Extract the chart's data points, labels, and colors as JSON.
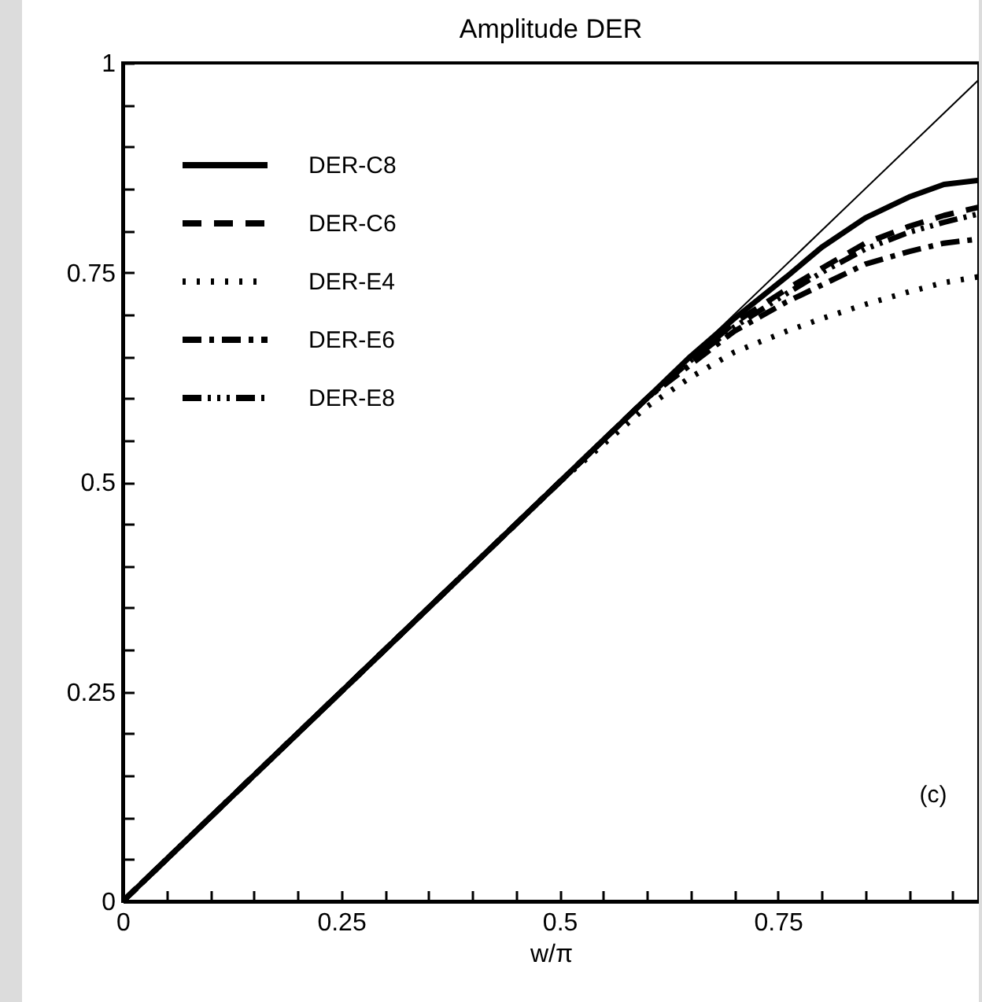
{
  "chart_data": {
    "type": "line",
    "title": "Amplitude DER",
    "xlabel": "w/π",
    "annotations": [
      "(c)"
    ],
    "x": [
      0,
      0.5,
      0.6,
      0.65,
      0.7,
      0.76,
      0.8,
      0.85,
      0.9,
      0.94,
      0.98
    ],
    "series": [
      {
        "color": "#000000",
        "line_style": "solid",
        "x": [
          0,
          0.98
        ],
        "values": [
          0,
          0.98
        ]
      },
      {
        "name": "DER-C8",
        "color": "#000000",
        "line_style": "solid",
        "values": [
          0,
          0.5,
          0.6,
          0.65,
          0.695,
          0.745,
          0.78,
          0.815,
          0.84,
          0.855,
          0.86
        ]
      },
      {
        "name": "DER-C6",
        "color": "#000000",
        "line_style": "dashed",
        "values": [
          0,
          0.5,
          0.6,
          0.645,
          0.69,
          0.73,
          0.755,
          0.785,
          0.805,
          0.818,
          0.828
        ]
      },
      {
        "name": "DER-E4",
        "color": "#000000",
        "line_style": "dotted",
        "values": [
          0,
          0.5,
          0.59,
          0.625,
          0.655,
          0.68,
          0.695,
          0.712,
          0.727,
          0.738,
          0.745
        ]
      },
      {
        "name": "DER-E6",
        "color": "#000000",
        "line_style": "dashdot",
        "values": [
          0,
          0.5,
          0.6,
          0.64,
          0.68,
          0.715,
          0.735,
          0.76,
          0.775,
          0.785,
          0.79
        ]
      },
      {
        "name": "DER-E8",
        "color": "#000000",
        "line_style": "dashdotdot",
        "values": [
          0,
          0.5,
          0.6,
          0.645,
          0.685,
          0.725,
          0.75,
          0.778,
          0.798,
          0.81,
          0.82
        ]
      }
    ],
    "xlim": [
      0,
      0.98
    ],
    "ylim": [
      0,
      1
    ],
    "xticks": [
      0,
      {
        "value": 0.05,
        "label": null
      },
      {
        "value": 0.1,
        "label": null
      },
      {
        "value": 0.15,
        "label": null
      },
      {
        "value": 0.2,
        "label": null
      },
      0.25,
      {
        "value": 0.3,
        "label": null
      },
      {
        "value": 0.35,
        "label": null
      },
      {
        "value": 0.4,
        "label": null
      },
      {
        "value": 0.45,
        "label": null
      },
      0.5,
      {
        "value": 0.55,
        "label": null
      },
      {
        "value": 0.6,
        "label": null
      },
      {
        "value": 0.65,
        "label": null
      },
      {
        "value": 0.7,
        "label": null
      },
      0.75,
      {
        "value": 0.8,
        "label": null
      },
      {
        "value": 0.85,
        "label": null
      },
      {
        "value": 0.9,
        "label": null
      },
      {
        "value": 0.95,
        "label": null
      }
    ],
    "yticks": [
      0,
      {
        "value": 0.05,
        "label": null
      },
      {
        "value": 0.1,
        "label": null
      },
      {
        "value": 0.15,
        "label": null
      },
      {
        "value": 0.2,
        "label": null
      },
      0.25,
      {
        "value": 0.3,
        "label": null
      },
      {
        "value": 0.35,
        "label": null
      },
      {
        "value": 0.4,
        "label": null
      },
      {
        "value": 0.45,
        "label": null
      },
      0.5,
      {
        "value": 0.55,
        "label": null
      },
      {
        "value": 0.6,
        "label": null
      },
      {
        "value": 0.65,
        "label": null
      },
      {
        "value": 0.7,
        "label": null
      },
      0.75,
      {
        "value": 0.8,
        "label": null
      },
      {
        "value": 0.85,
        "label": null
      },
      {
        "value": 0.9,
        "label": null
      },
      {
        "value": 0.95,
        "label": null
      },
      1
    ],
    "grid": false,
    "legend": "top left",
    "marker": "none"
  }
}
